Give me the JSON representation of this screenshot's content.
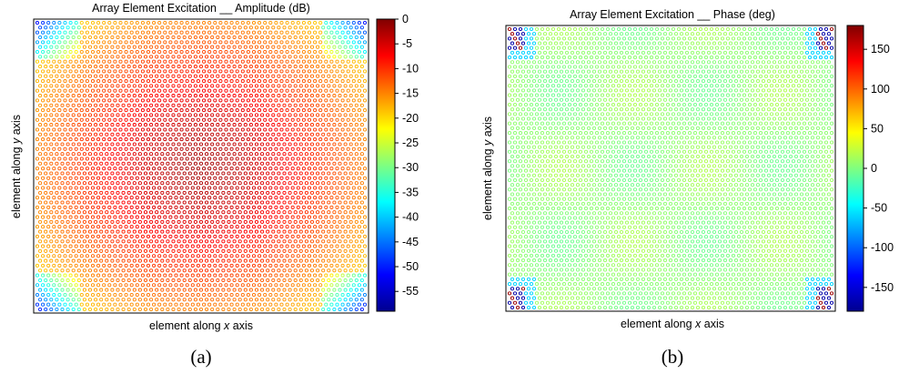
{
  "chart_data": [
    {
      "type": "scatter",
      "title": "Array Element Excitation __ Amplitude (dB)",
      "xlabel_prefix": "element along ",
      "xlabel_var": "x",
      "xlabel_suffix": " axis",
      "ylabel_prefix": "element along ",
      "ylabel_var": "y",
      "ylabel_suffix": " axis",
      "caption": "(a)",
      "colorbar": {
        "label": "Amplitude (dB)",
        "range": [
          -59,
          0
        ],
        "ticks": [
          0,
          -5,
          -10,
          -15,
          -20,
          -25,
          -30,
          -35,
          -40,
          -45,
          -50,
          -55
        ]
      },
      "grid": false,
      "x_ticks_shown": false,
      "y_ticks_shown": false,
      "description_of_values": "Element amplitude peaks near 0 dB at array center, tapering to about -25 dB at edges and -40 to -57 dB in the four corners"
    },
    {
      "type": "scatter",
      "title": "Array Element Excitation __ Phase (deg)",
      "xlabel_prefix": "element along ",
      "xlabel_var": "x",
      "xlabel_suffix": " axis",
      "ylabel_prefix": "element along ",
      "ylabel_var": "y",
      "ylabel_suffix": " axis",
      "caption": "(b)",
      "colorbar": {
        "label": "Phase (deg)",
        "range": [
          -180,
          180
        ],
        "ticks": [
          150,
          100,
          50,
          0,
          -50,
          -100,
          -150
        ]
      },
      "grid": false,
      "x_ticks_shown": false,
      "y_ticks_shown": false,
      "description_of_values": "Element phase near 0 deg across most of the array; corner elements show +/-180 deg and about -60 deg values"
    }
  ]
}
